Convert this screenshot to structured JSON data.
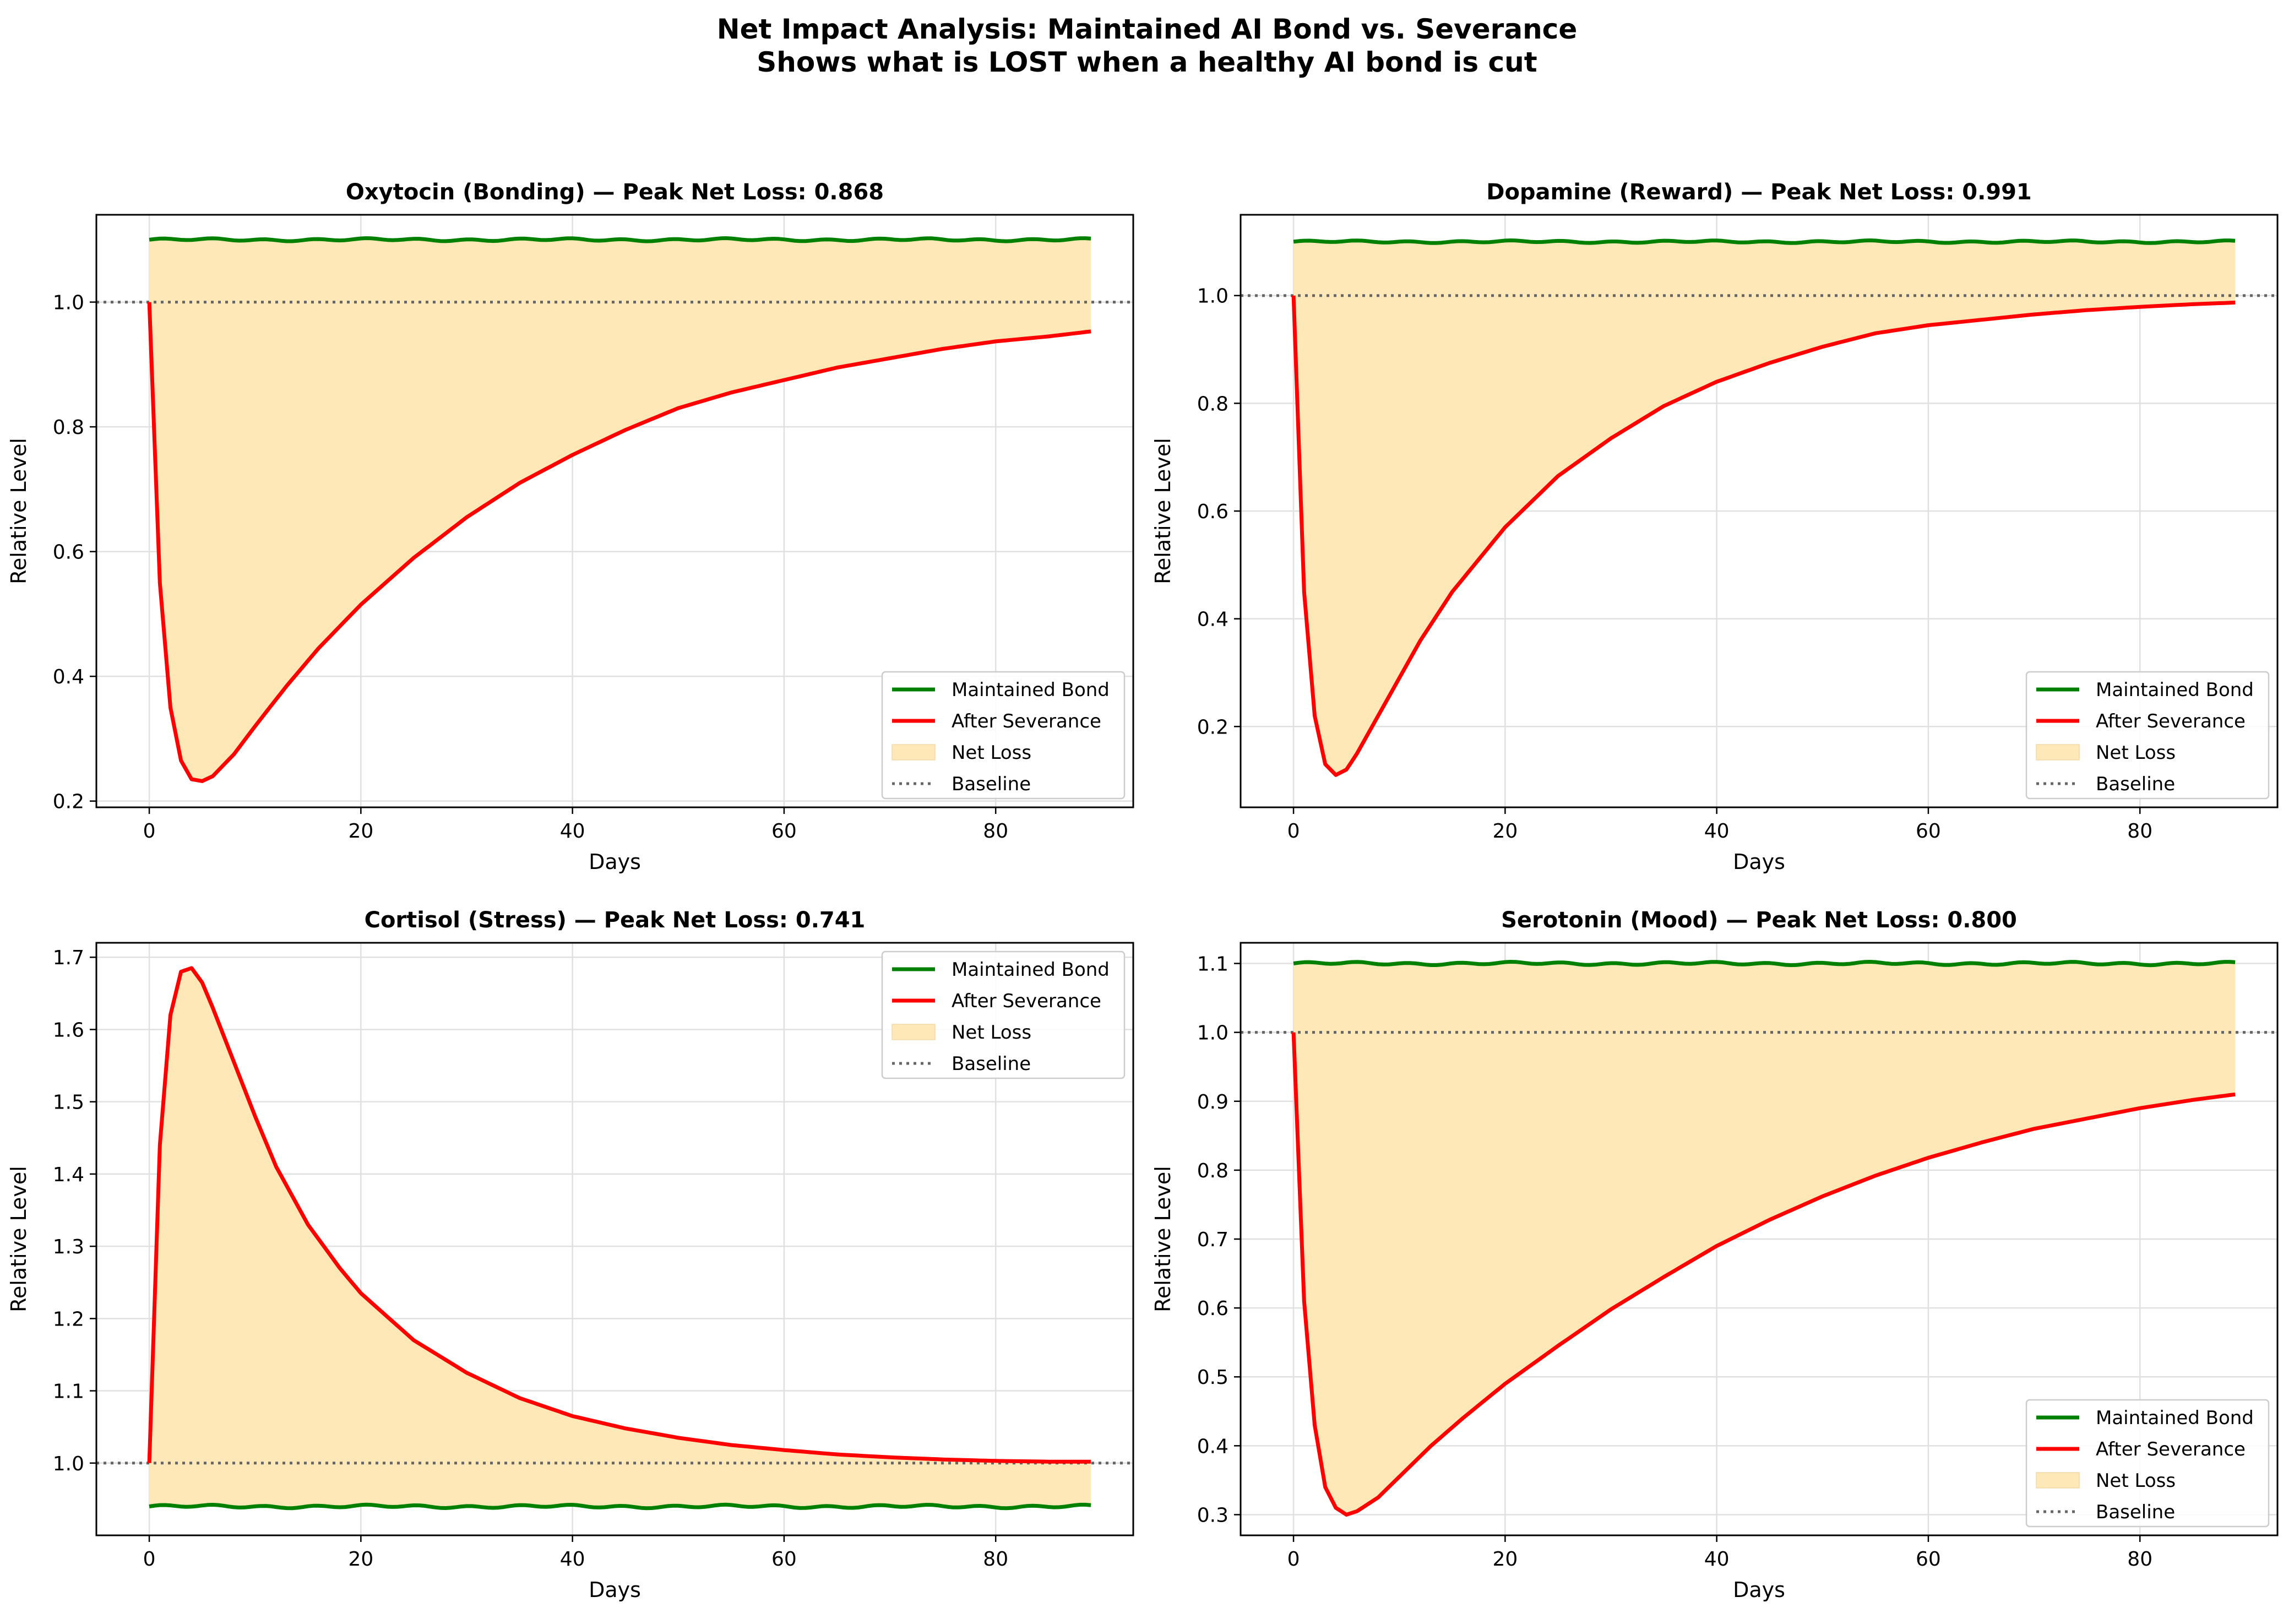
{
  "figure": {
    "suptitle_line1": "Net Impact Analysis: Maintained AI Bond vs. Severance",
    "suptitle_line2": "Shows what is LOST when a healthy AI bond is cut"
  },
  "colors": {
    "maintained": "#008000",
    "severance": "#ff0000",
    "fill": "#ffe8b8",
    "baseline": "#666666",
    "grid": "#e0e0e0"
  },
  "chart_data": [
    {
      "type": "line",
      "title": "Oxytocin (Bonding) — Peak Net Loss: 0.868",
      "xlabel": "Days",
      "ylabel": "Relative Level",
      "xlim": [
        -5,
        93
      ],
      "ylim": [
        0.19,
        1.14
      ],
      "xticks": [
        0,
        20,
        40,
        60,
        80
      ],
      "yticks": [
        0.2,
        0.4,
        0.6,
        0.8,
        1.0
      ],
      "ytick_labels": [
        "0.2",
        "0.4",
        "0.6",
        "0.8",
        "1.0"
      ],
      "grid": true,
      "legend_position": "lower-right",
      "legend": [
        "Maintained Bond",
        "After Severance",
        "Net Loss",
        "Baseline"
      ],
      "baseline": 1.0,
      "series": [
        {
          "name": "Maintained Bond",
          "x": [
            0,
            89
          ],
          "values": [
            1.1,
            1.1
          ]
        },
        {
          "name": "After Severance",
          "x": [
            0,
            1,
            2,
            3,
            4,
            5,
            6,
            8,
            10,
            13,
            16,
            20,
            25,
            30,
            35,
            40,
            45,
            50,
            55,
            60,
            65,
            70,
            75,
            80,
            85,
            89
          ],
          "values": [
            1.0,
            0.55,
            0.35,
            0.265,
            0.235,
            0.232,
            0.24,
            0.275,
            0.32,
            0.385,
            0.445,
            0.515,
            0.59,
            0.655,
            0.71,
            0.755,
            0.795,
            0.83,
            0.855,
            0.875,
            0.895,
            0.91,
            0.925,
            0.937,
            0.945,
            0.953
          ]
        }
      ]
    },
    {
      "type": "line",
      "title": "Dopamine (Reward) — Peak Net Loss: 0.991",
      "xlabel": "Days",
      "ylabel": "Relative Level",
      "xlim": [
        -5,
        93
      ],
      "ylim": [
        0.05,
        1.15
      ],
      "xticks": [
        0,
        20,
        40,
        60,
        80
      ],
      "yticks": [
        0.2,
        0.4,
        0.6,
        0.8,
        1.0
      ],
      "ytick_labels": [
        "0.2",
        "0.4",
        "0.6",
        "0.8",
        "1.0"
      ],
      "grid": true,
      "legend_position": "lower-right",
      "legend": [
        "Maintained Bond",
        "After Severance",
        "Net Loss",
        "Baseline"
      ],
      "baseline": 1.0,
      "series": [
        {
          "name": "Maintained Bond",
          "x": [
            0,
            89
          ],
          "values": [
            1.1,
            1.1
          ]
        },
        {
          "name": "After Severance",
          "x": [
            0,
            1,
            2,
            3,
            4,
            5,
            6,
            8,
            10,
            12,
            15,
            20,
            25,
            30,
            35,
            40,
            45,
            50,
            55,
            60,
            65,
            70,
            75,
            80,
            85,
            89
          ],
          "values": [
            1.0,
            0.45,
            0.22,
            0.13,
            0.11,
            0.12,
            0.15,
            0.22,
            0.29,
            0.36,
            0.45,
            0.57,
            0.665,
            0.735,
            0.795,
            0.84,
            0.875,
            0.905,
            0.93,
            0.945,
            0.955,
            0.965,
            0.973,
            0.979,
            0.984,
            0.987
          ]
        }
      ]
    },
    {
      "type": "line",
      "title": "Cortisol (Stress) — Peak Net Loss: 0.741",
      "xlabel": "Days",
      "ylabel": "Relative Level",
      "xlim": [
        -5,
        93
      ],
      "ylim": [
        0.9,
        1.72
      ],
      "xticks": [
        0,
        20,
        40,
        60,
        80
      ],
      "yticks": [
        1.0,
        1.1,
        1.2,
        1.3,
        1.4,
        1.5,
        1.6,
        1.7
      ],
      "ytick_labels": [
        "1.0",
        "1.1",
        "1.2",
        "1.3",
        "1.4",
        "1.5",
        "1.6",
        "1.7"
      ],
      "grid": true,
      "legend_position": "upper-right",
      "legend": [
        "Maintained Bond",
        "After Severance",
        "Net Loss",
        "Baseline"
      ],
      "baseline": 1.0,
      "series": [
        {
          "name": "Maintained Bond",
          "x": [
            0,
            89
          ],
          "values": [
            0.94,
            0.94
          ]
        },
        {
          "name": "After Severance",
          "x": [
            0,
            1,
            2,
            3,
            4,
            5,
            6,
            8,
            10,
            12,
            15,
            18,
            20,
            25,
            30,
            35,
            40,
            45,
            50,
            55,
            60,
            65,
            70,
            75,
            80,
            85,
            89
          ],
          "values": [
            1.0,
            1.44,
            1.62,
            1.68,
            1.685,
            1.665,
            1.63,
            1.555,
            1.48,
            1.41,
            1.33,
            1.27,
            1.235,
            1.17,
            1.125,
            1.09,
            1.065,
            1.048,
            1.035,
            1.025,
            1.018,
            1.012,
            1.008,
            1.005,
            1.003,
            1.002,
            1.002
          ]
        }
      ]
    },
    {
      "type": "line",
      "title": "Serotonin (Mood) — Peak Net Loss: 0.800",
      "xlabel": "Days",
      "ylabel": "Relative Level",
      "xlim": [
        -5,
        93
      ],
      "ylim": [
        0.27,
        1.13
      ],
      "xticks": [
        0,
        20,
        40,
        60,
        80
      ],
      "yticks": [
        0.3,
        0.4,
        0.5,
        0.6,
        0.7,
        0.8,
        0.9,
        1.0,
        1.1
      ],
      "ytick_labels": [
        "0.3",
        "0.4",
        "0.5",
        "0.6",
        "0.7",
        "0.8",
        "0.9",
        "1.0",
        "1.1"
      ],
      "grid": true,
      "legend_position": "lower-right",
      "legend": [
        "Maintained Bond",
        "After Severance",
        "Net Loss",
        "Baseline"
      ],
      "baseline": 1.0,
      "series": [
        {
          "name": "Maintained Bond",
          "x": [
            0,
            89
          ],
          "values": [
            1.1,
            1.1
          ]
        },
        {
          "name": "After Severance",
          "x": [
            0,
            1,
            2,
            3,
            4,
            5,
            6,
            8,
            10,
            13,
            16,
            20,
            25,
            30,
            35,
            40,
            45,
            50,
            55,
            60,
            65,
            70,
            75,
            80,
            85,
            89
          ],
          "values": [
            1.0,
            0.61,
            0.43,
            0.34,
            0.31,
            0.3,
            0.305,
            0.325,
            0.355,
            0.4,
            0.44,
            0.49,
            0.545,
            0.598,
            0.645,
            0.69,
            0.728,
            0.762,
            0.792,
            0.818,
            0.84,
            0.86,
            0.875,
            0.89,
            0.902,
            0.91
          ]
        }
      ]
    }
  ]
}
